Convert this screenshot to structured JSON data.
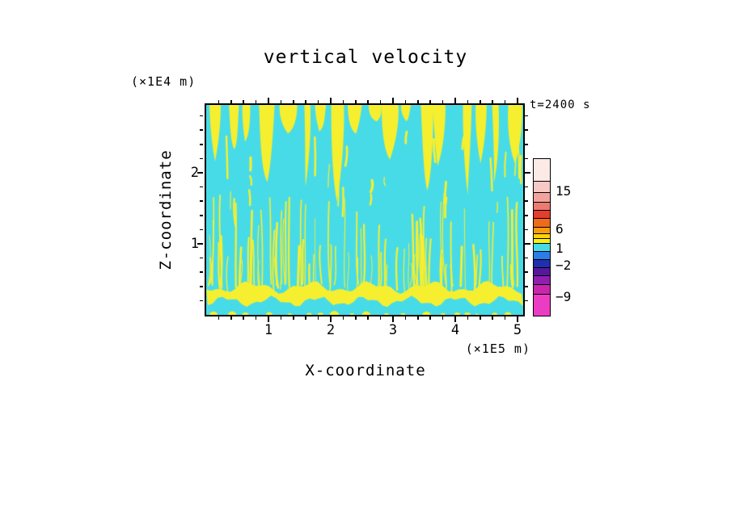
{
  "chart_data": {
    "type": "heatmap",
    "title": "vertical velocity",
    "timestamp": "t=2400 s",
    "xlabel": "X-coordinate",
    "ylabel": "Z-coordinate",
    "x_unit": "(×1E5 m)",
    "y_unit": "(×1E4 m)",
    "x_ticks": [
      1,
      2,
      3,
      4,
      5
    ],
    "y_ticks": [
      1,
      2
    ],
    "xlim": [
      0,
      5.1
    ],
    "ylim": [
      0,
      2.95
    ],
    "grid": false,
    "legend_position": "right-colorbar",
    "field": {
      "description": "2-D vertical velocity field on cyan background (weak/negative w, roughly -2 to 1 band) with yellow updraft structures (roughly 1 to 2 band): broad plumes hanging from the top boundary, many thin vertical updraft fingers in the lower half, and a wavy yellow band near the bottom surface with scalloped underside",
      "background_color": "#47dbe8",
      "updraft_color": "#f6ef2f",
      "seed": 11,
      "top_plumes": 18,
      "mid_streaks": 26,
      "fingers": 85
    },
    "colorbar": {
      "value_labels": [
        15,
        6,
        1,
        -2,
        -9
      ],
      "segments": [
        {
          "color": "#fbeae6",
          "h": 27
        },
        {
          "color": "#f7c9c4",
          "h": 14
        },
        {
          "color": "#f2a39d",
          "h": 12
        },
        {
          "color": "#ec7b72",
          "h": 10
        },
        {
          "color": "#e23d2e",
          "h": 10
        },
        {
          "color": "#ef6a1a",
          "h": 11
        },
        {
          "color": "#f79b12",
          "h": 8
        },
        {
          "color": "#fbd20c",
          "h": 6
        },
        {
          "color": "#f9f116",
          "h": 6
        },
        {
          "color": "#47dbe8",
          "h": 10
        },
        {
          "color": "#2b7de8",
          "h": 10
        },
        {
          "color": "#1f2fae",
          "h": 10
        },
        {
          "color": "#55189a",
          "h": 10
        },
        {
          "color": "#8f1fae",
          "h": 11
        },
        {
          "color": "#c926ab",
          "h": 12
        },
        {
          "color": "#ec3cc3",
          "h": 27
        }
      ],
      "labels": [
        {
          "text": "15",
          "y": 41
        },
        {
          "text": "6",
          "y": 88
        },
        {
          "text": "1",
          "y": 112
        },
        {
          "text": "−2",
          "y": 133
        },
        {
          "text": "−9",
          "y": 172
        }
      ]
    }
  }
}
